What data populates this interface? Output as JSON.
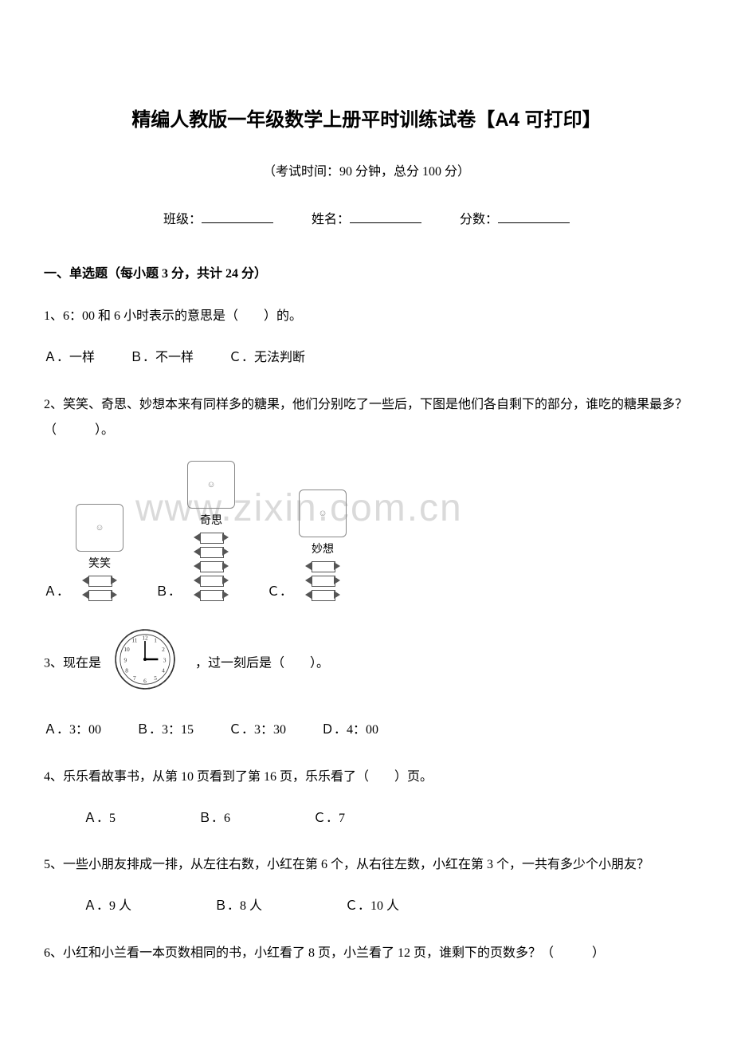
{
  "title": "精编人教版一年级数学上册平时训练试卷【A4 可打印】",
  "subtitle": "（考试时间：90 分钟，总分 100 分）",
  "fill_labels": {
    "class": "班级：",
    "name": "姓名：",
    "score": "分数："
  },
  "section1_header": "一、单选题（每小题 3 分，共计 24 分）",
  "q1": {
    "stem": "1、6：00 和 6 小时表示的意思是（　　）的。",
    "A": "Ａ．一样",
    "B": "Ｂ．不一样",
    "C": "Ｃ．无法判断"
  },
  "q2": {
    "stem": "2、笑笑、奇思、妙想本来有同样多的糖果，他们分别吃了一些后，下图是他们各自剩下的部分，谁吃的糖果最多？（　　　）。",
    "labelA": "笑笑",
    "labelB": "奇思",
    "labelC": "妙想",
    "candiesA": 2,
    "candiesB": 5,
    "candiesC": 3,
    "A": "Ａ．",
    "B": "Ｂ．",
    "C": "Ｃ．"
  },
  "q3": {
    "prefix": "3、现在是",
    "suffix": "，过一刻后是（　　）。",
    "clock": {
      "hour": 3,
      "minute": 0
    },
    "A": "Ａ．3：00",
    "B": "Ｂ．3：15",
    "C": "Ｃ．3：30",
    "D": "Ｄ．4：00"
  },
  "q4": {
    "stem": "4、乐乐看故事书，从第 10 页看到了第 16 页，乐乐看了（　　）页。",
    "A": "Ａ．5",
    "B": "Ｂ．6",
    "C": "Ｃ．7"
  },
  "q5": {
    "stem": "5、一些小朋友排成一排，从左往右数，小红在第 6 个，从右往左数，小红在第 3 个，一共有多少个小朋友？",
    "A": "Ａ．9 人",
    "B": "Ｂ．8 人",
    "C": "Ｃ．10 人"
  },
  "q6": {
    "stem": "6、小红和小兰看一本页数相同的书，小红看了 8 页，小兰看了 12 页，谁剩下的页数多？（　　　）"
  },
  "watermark": "www.zixin.com.cn"
}
